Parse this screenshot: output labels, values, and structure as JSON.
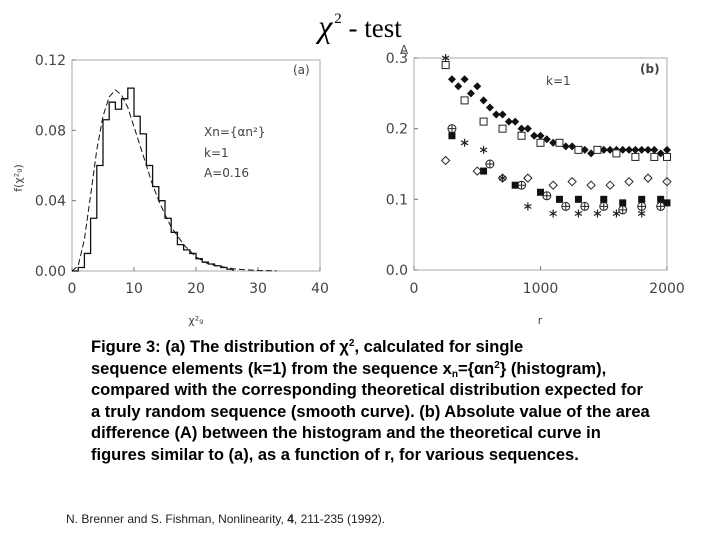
{
  "title": {
    "chi": "χ",
    "sup": "2",
    "rest": " - test"
  },
  "chart_data": [
    {
      "panel": "(a)",
      "type": "line",
      "ylabel": "f(χ²₉)",
      "xlabel": "χ²₉",
      "xlim": [
        0,
        40
      ],
      "ylim": [
        0,
        0.12
      ],
      "x_ticks": [
        "0",
        "10",
        "20",
        "30",
        "40"
      ],
      "y_ticks": [
        "0.00",
        "0.04",
        "0.08",
        "0.12"
      ],
      "annotations": [
        "Xn={αn²}",
        "k=1",
        "A=0.16"
      ],
      "histogram": {
        "bin_edges": [
          0,
          1,
          2,
          3,
          4,
          5,
          6,
          7,
          8,
          9,
          10,
          11,
          12,
          13,
          14,
          15,
          16,
          17,
          18,
          19,
          20,
          21,
          22,
          23,
          24,
          25,
          26
        ],
        "values": [
          0.0,
          0.002,
          0.01,
          0.03,
          0.06,
          0.086,
          0.096,
          0.092,
          0.098,
          0.104,
          0.088,
          0.078,
          0.06,
          0.048,
          0.04,
          0.03,
          0.022,
          0.015,
          0.012,
          0.01,
          0.007,
          0.005,
          0.004,
          0.003,
          0.002,
          0.001
        ]
      },
      "theory": {
        "x": [
          0,
          1,
          2,
          3,
          4,
          5,
          6,
          7,
          8,
          9,
          10,
          11,
          12,
          13,
          14,
          15,
          16,
          18,
          20,
          22,
          24,
          26,
          28,
          30,
          33
        ],
        "y": [
          0,
          0.003,
          0.018,
          0.043,
          0.069,
          0.088,
          0.099,
          0.103,
          0.1,
          0.093,
          0.082,
          0.071,
          0.06,
          0.049,
          0.04,
          0.032,
          0.025,
          0.015,
          0.008,
          0.004,
          0.0025,
          0.0013,
          0.0007,
          0.0003,
          0.0001
        ]
      }
    },
    {
      "panel": "(b)",
      "type": "scatter",
      "ylabel": "A",
      "xlabel": "r",
      "xlim": [
        0,
        2000
      ],
      "ylim": [
        0,
        0.3
      ],
      "x_ticks": [
        "0",
        "1000",
        "2000"
      ],
      "y_ticks": [
        "0.0",
        "0.1",
        "0.2",
        "0.3"
      ],
      "annotations": [
        "k=1"
      ],
      "series": [
        {
          "marker": "filled-diamond",
          "x": [
            300,
            350,
            400,
            450,
            500,
            550,
            600,
            650,
            700,
            750,
            800,
            850,
            900,
            950,
            1000,
            1050,
            1100,
            1150,
            1200,
            1250,
            1300,
            1350,
            1400,
            1450,
            1500,
            1550,
            1600,
            1650,
            1700,
            1750,
            1800,
            1850,
            1900,
            1950,
            2000
          ],
          "y": [
            0.27,
            0.26,
            0.27,
            0.25,
            0.26,
            0.24,
            0.23,
            0.22,
            0.22,
            0.21,
            0.21,
            0.2,
            0.2,
            0.19,
            0.19,
            0.185,
            0.18,
            0.18,
            0.175,
            0.175,
            0.17,
            0.17,
            0.165,
            0.17,
            0.17,
            0.17,
            0.17,
            0.17,
            0.17,
            0.17,
            0.17,
            0.17,
            0.17,
            0.165,
            0.17
          ]
        },
        {
          "marker": "open-square",
          "x": [
            250,
            400,
            550,
            700,
            850,
            1000,
            1150,
            1300,
            1450,
            1600,
            1750,
            1900,
            2000
          ],
          "y": [
            0.29,
            0.24,
            0.21,
            0.2,
            0.19,
            0.18,
            0.18,
            0.17,
            0.17,
            0.165,
            0.16,
            0.16,
            0.16
          ]
        },
        {
          "marker": "filled-square",
          "x": [
            300,
            550,
            800,
            1000,
            1150,
            1300,
            1500,
            1650,
            1800,
            1950,
            2000
          ],
          "y": [
            0.19,
            0.14,
            0.12,
            0.11,
            0.1,
            0.1,
            0.1,
            0.095,
            0.1,
            0.1,
            0.095
          ]
        },
        {
          "marker": "open-diamond",
          "x": [
            250,
            500,
            700,
            900,
            1100,
            1250,
            1400,
            1550,
            1700,
            1850,
            2000
          ],
          "y": [
            0.155,
            0.14,
            0.13,
            0.13,
            0.12,
            0.125,
            0.12,
            0.12,
            0.125,
            0.13,
            0.125
          ]
        },
        {
          "marker": "circle-plus",
          "x": [
            300,
            600,
            850,
            1050,
            1200,
            1350,
            1500,
            1650,
            1800,
            1950
          ],
          "y": [
            0.2,
            0.15,
            0.12,
            0.105,
            0.09,
            0.09,
            0.09,
            0.085,
            0.09,
            0.09
          ]
        },
        {
          "marker": "asterisk",
          "x": [
            250,
            400,
            550,
            700,
            900,
            1100,
            1300,
            1450,
            1600,
            1800
          ],
          "y": [
            0.3,
            0.18,
            0.17,
            0.13,
            0.09,
            0.08,
            0.08,
            0.08,
            0.08,
            0.08
          ]
        }
      ]
    }
  ],
  "caption": {
    "l1a": "Figure 3: (a) The distribution of χ",
    "l1sup": "2",
    "l1b": ", calculated for single",
    "l2a": "sequence elements (k=1) from the sequence x",
    "l2sub": "n",
    "l2b": "={αn",
    "l2sup": "2",
    "l2c": "}",
    "rest": "(histogram), compared with the corresponding  theoretical distribution expected for a truly random sequence (smooth curve). (b) Absolute value of the area difference (A) between the histogram and the theoretical curve in figures similar to (a), as a function of r, for various sequences."
  },
  "reference": {
    "pre": "N. Brenner and S. Fishman, Nonlinearity, ",
    "vol": "4",
    "post": ", 211-235 (1992)."
  }
}
